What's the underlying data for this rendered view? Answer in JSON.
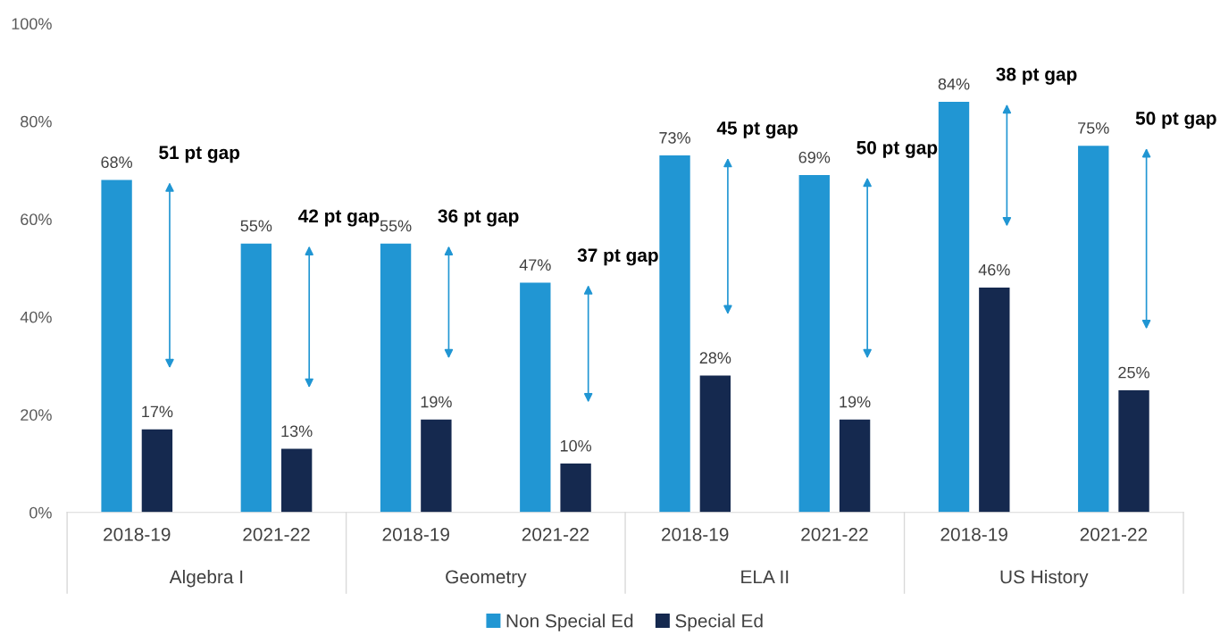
{
  "chart_data": {
    "type": "bar",
    "categories": [
      "2018-19",
      "2021-22",
      "2018-19",
      "2021-22",
      "2018-19",
      "2021-22",
      "2018-19",
      "2021-22"
    ],
    "series": [
      {
        "name": "Non Special Ed",
        "color": "#2196d3",
        "values": [
          68,
          55,
          55,
          47,
          73,
          69,
          84,
          75
        ],
        "value_labels": [
          "68%",
          "55%",
          "55%",
          "47%",
          "73%",
          "69%",
          "84%",
          "75%"
        ]
      },
      {
        "name": "Special Ed",
        "color": "#15294f",
        "values": [
          17,
          13,
          19,
          10,
          28,
          19,
          46,
          25
        ],
        "value_labels": [
          "17%",
          "13%",
          "19%",
          "10%",
          "28%",
          "19%",
          "46%",
          "25%"
        ]
      }
    ],
    "annotations": [
      "51 pt gap",
      "42 pt gap",
      "36 pt gap",
      "37 pt gap",
      "45 pt gap",
      "50 pt gap",
      "38 pt gap",
      "50 pt gap",
      "Algebra I",
      "Geometry",
      "ELA II",
      "US History"
    ],
    "ylim": [
      0,
      100
    ],
    "yticks": [
      {
        "value": 0,
        "label": "0%"
      },
      {
        "value": 20,
        "label": "20%"
      },
      {
        "value": 40,
        "label": "40%"
      },
      {
        "value": 60,
        "label": "60%"
      },
      {
        "value": 80,
        "label": "80%"
      },
      {
        "value": 100,
        "label": "100%"
      }
    ],
    "grid": false,
    "legend": "bottom"
  }
}
